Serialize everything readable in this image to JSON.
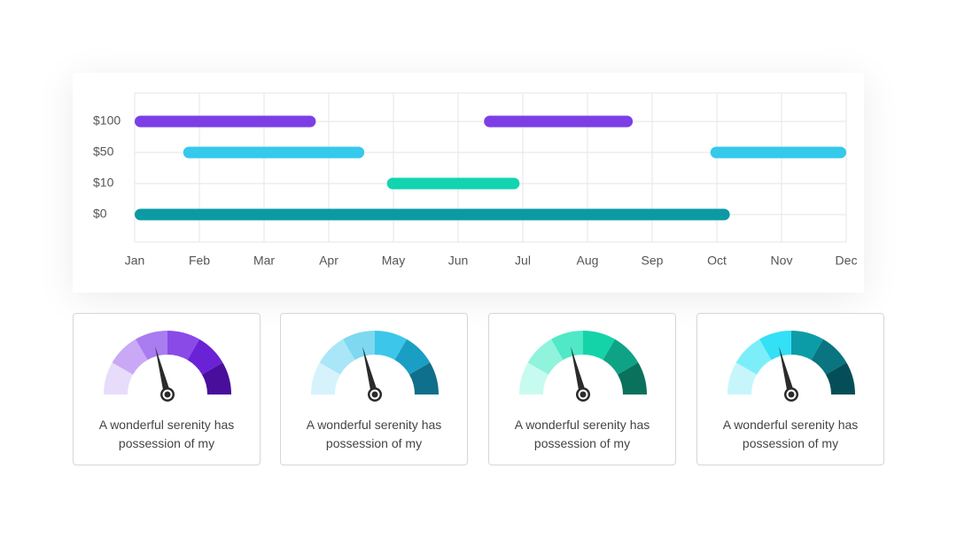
{
  "chart_data": {
    "type": "gantt",
    "rows": [
      {
        "label": "$100",
        "color": "#7c3fe6",
        "spans": [
          [
            0,
            2.8
          ],
          [
            5.4,
            7.7
          ]
        ]
      },
      {
        "label": "$50",
        "color": "#35c9ec",
        "spans": [
          [
            0.75,
            3.55
          ],
          [
            8.9,
            11
          ]
        ]
      },
      {
        "label": "$10",
        "color": "#12d4b0",
        "spans": [
          [
            3.9,
            5.95
          ]
        ]
      },
      {
        "label": "$0",
        "color": "#0b9aa3",
        "spans": [
          [
            0,
            9.2
          ]
        ]
      }
    ],
    "xlim": [
      0,
      11
    ],
    "xticks": [
      {
        "value": 0,
        "label": "Jan"
      },
      {
        "value": 1,
        "label": "Feb"
      },
      {
        "value": 2,
        "label": "Mar"
      },
      {
        "value": 3,
        "label": "Apr"
      },
      {
        "value": 4,
        "label": "May"
      },
      {
        "value": 5,
        "label": "Jun"
      },
      {
        "value": 6,
        "label": "Jul"
      },
      {
        "value": 7,
        "label": "Aug"
      },
      {
        "value": 8,
        "label": "Sep"
      },
      {
        "value": 9,
        "label": "Oct"
      },
      {
        "value": 10,
        "label": "Nov"
      },
      {
        "value": 11,
        "label": "Dec"
      }
    ],
    "grid": true
  },
  "gauges": {
    "range": [
      0,
      100
    ],
    "items": [
      {
        "value": 42,
        "text": "A wonderful serenity has possession of my",
        "colors": [
          "#e8dcfb",
          "#c9a9f5",
          "#a97cef",
          "#8a4ae8",
          "#6a22d6",
          "#480e9c"
        ]
      },
      {
        "value": 42,
        "text": "A wonderful serenity has possession of my",
        "colors": [
          "#d6f3fb",
          "#a9e6f7",
          "#7ed8f0",
          "#3cc6ea",
          "#1a9ec4",
          "#106f8a"
        ]
      },
      {
        "value": 42,
        "text": "A wonderful serenity has possession of my",
        "colors": [
          "#c8fbef",
          "#90f3dc",
          "#50e8c6",
          "#14d3a8",
          "#0fa386",
          "#0a715c"
        ]
      },
      {
        "value": 42,
        "text": "A wonderful serenity has possession of my",
        "colors": [
          "#c6f6fc",
          "#7ceefa",
          "#33e0f5",
          "#0c9ca8",
          "#0a7480",
          "#064e57"
        ]
      }
    ]
  }
}
